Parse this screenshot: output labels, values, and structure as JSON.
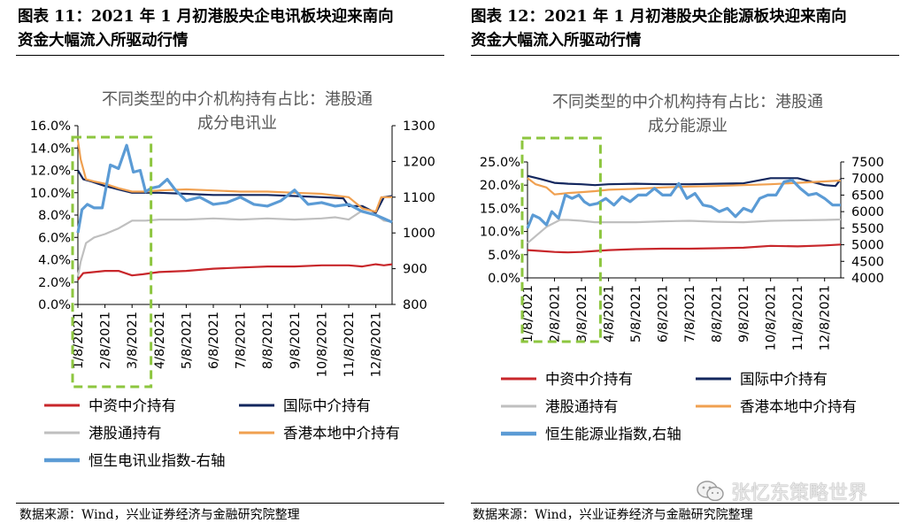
{
  "left": {
    "fig_title_1": "图表 11：2021 年 1 月初港股央企电讯板块迎来南向",
    "fig_title_2": "资金大幅流入所驱动行情",
    "source": "数据来源：Wind，兴业证券经济与金融研究院整理"
  },
  "right": {
    "fig_title_1": "图表 12：2021 年 1 月初港股央企能源板块迎来南向",
    "fig_title_2": "资金大幅流入所驱动行情",
    "source": "数据来源：Wind，兴业证券经济与金融研究院整理"
  },
  "watermark": {
    "text": "张忆东策略世界"
  },
  "colors": {
    "red": "#c8272b",
    "navy": "#13275e",
    "gray": "#bfbfbf",
    "orange": "#f0a050",
    "blue": "#5b9bd5",
    "highlight": "#8dc63f"
  },
  "chart_data": [
    {
      "type": "line",
      "title_lines": [
        "不同类型的中介机构持有占比：港股通",
        "成分电讯业"
      ],
      "x_ticks": [
        "1/8/2021",
        "2/8/2021",
        "3/8/2021",
        "4/8/2021",
        "5/8/2021",
        "6/8/2021",
        "7/8/2021",
        "8/8/2021",
        "9/8/2021",
        "10/8/2021",
        "11/8/2021",
        "12/8/2021"
      ],
      "x_range": [
        0,
        11.6
      ],
      "highlight_x": [
        0,
        2.7
      ],
      "y_left": {
        "ticks": [
          "0.0%",
          "2.0%",
          "4.0%",
          "6.0%",
          "8.0%",
          "10.0%",
          "12.0%",
          "14.0%",
          "16.0%"
        ],
        "range": [
          0,
          16
        ]
      },
      "y_right": {
        "ticks": [
          "800",
          "900",
          "1000",
          "1100",
          "1200",
          "1300"
        ],
        "range": [
          800,
          1300
        ]
      },
      "series": [
        {
          "name": "中资中介持有",
          "axis": "left",
          "color": "#c8272b",
          "x": [
            0,
            0.2,
            0.6,
            1.0,
            1.5,
            2.0,
            2.4,
            3.0,
            4.0,
            5.0,
            6.0,
            7.0,
            8.0,
            9.0,
            10.0,
            10.5,
            11.0,
            11.3,
            11.6
          ],
          "values": [
            2.2,
            2.8,
            2.9,
            3.0,
            3.0,
            2.6,
            2.7,
            2.9,
            3.0,
            3.2,
            3.3,
            3.4,
            3.4,
            3.5,
            3.5,
            3.4,
            3.6,
            3.5,
            3.6
          ]
        },
        {
          "name": "国际中介持有",
          "axis": "left",
          "color": "#13275e",
          "x": [
            0,
            0.2,
            0.5,
            1.0,
            1.5,
            2.0,
            2.5,
            3.0,
            4.0,
            5.0,
            6.0,
            7.0,
            8.0,
            9.0,
            9.8,
            10.0,
            10.5,
            11.0,
            11.3,
            11.6
          ],
          "values": [
            12.0,
            11.2,
            11.0,
            10.6,
            10.3,
            10.0,
            10.0,
            10.0,
            9.9,
            9.8,
            9.8,
            9.8,
            9.7,
            9.6,
            9.5,
            8.8,
            8.8,
            8.2,
            9.6,
            9.7
          ]
        },
        {
          "name": "港股通持有",
          "axis": "left",
          "color": "#bfbfbf",
          "x": [
            0,
            0.1,
            0.3,
            0.6,
            1.0,
            1.5,
            2.0,
            2.5,
            3.0,
            4.0,
            5.0,
            6.0,
            7.0,
            8.0,
            9.0,
            9.5,
            10.0,
            10.5,
            11.0,
            11.3,
            11.6
          ],
          "values": [
            2.5,
            3.8,
            5.5,
            6.0,
            6.3,
            6.8,
            7.5,
            7.5,
            7.6,
            7.6,
            7.7,
            7.6,
            7.7,
            7.6,
            7.7,
            7.8,
            7.6,
            8.4,
            8.0,
            7.5,
            7.4
          ]
        },
        {
          "name": "香港本地中介持有",
          "axis": "left",
          "color": "#f0a050",
          "x": [
            0,
            0.1,
            0.3,
            0.6,
            1.0,
            1.5,
            2.0,
            2.5,
            3.0,
            4.0,
            5.0,
            6.0,
            7.0,
            8.0,
            9.0,
            10.0,
            10.5,
            11.0,
            11.2,
            11.6
          ],
          "values": [
            14.7,
            13.0,
            11.2,
            11.0,
            10.8,
            10.4,
            10.1,
            10.1,
            10.2,
            10.3,
            10.2,
            10.1,
            10.1,
            10.0,
            9.9,
            9.6,
            8.6,
            8.3,
            9.6,
            9.6
          ]
        },
        {
          "name": "恒生电讯业指数-右轴",
          "axis": "right",
          "color": "#5b9bd5",
          "x": [
            0,
            0.15,
            0.35,
            0.6,
            0.9,
            1.2,
            1.5,
            1.8,
            2.05,
            2.3,
            2.5,
            2.7,
            3.0,
            3.3,
            3.6,
            4.0,
            4.5,
            5.0,
            5.5,
            6.0,
            6.5,
            7.0,
            7.5,
            8.0,
            8.5,
            9.0,
            9.5,
            10.0,
            10.5,
            11.0,
            11.3,
            11.6
          ],
          "values": [
            1000,
            1065,
            1080,
            1070,
            1070,
            1190,
            1180,
            1245,
            1170,
            1175,
            1115,
            1125,
            1130,
            1150,
            1120,
            1090,
            1100,
            1080,
            1085,
            1100,
            1080,
            1075,
            1090,
            1120,
            1080,
            1085,
            1075,
            1080,
            1060,
            1050,
            1040,
            1030
          ]
        }
      ],
      "legend": [
        "中资中介持有",
        "国际中介持有",
        "港股通持有",
        "香港本地中介持有",
        "恒生电讯业指数-右轴"
      ]
    },
    {
      "type": "line",
      "title_lines": [
        "不同类型的中介机构持有占比：港股通",
        "成分能源业"
      ],
      "x_ticks": [
        "1/8/2021",
        "2/8/2021",
        "3/8/2021",
        "4/8/2021",
        "5/8/2021",
        "6/8/2021",
        "7/8/2021",
        "8/8/2021",
        "9/8/2021",
        "10/8/2021",
        "11/8/2021",
        "12/8/2021"
      ],
      "x_range": [
        0,
        11.6
      ],
      "highlight_x": [
        0,
        2.7
      ],
      "y_left": {
        "ticks": [
          "0.0%",
          "5.0%",
          "10.0%",
          "15.0%",
          "20.0%",
          "25.0%"
        ],
        "range": [
          0,
          25
        ]
      },
      "y_right": {
        "ticks": [
          "4000",
          "4500",
          "5000",
          "5500",
          "6000",
          "6500",
          "7000",
          "7500"
        ],
        "range": [
          4000,
          7500
        ]
      },
      "series": [
        {
          "name": "中资中介持有",
          "axis": "left",
          "color": "#c8272b",
          "x": [
            0,
            0.5,
            1.0,
            1.5,
            2.0,
            2.5,
            3.0,
            4.0,
            5.0,
            6.0,
            7.0,
            8.0,
            9.0,
            10.0,
            11.0,
            11.6
          ],
          "values": [
            6.0,
            5.8,
            5.6,
            5.5,
            5.6,
            5.8,
            6.0,
            6.2,
            6.3,
            6.3,
            6.4,
            6.5,
            6.9,
            6.8,
            7.0,
            7.2
          ]
        },
        {
          "name": "国际中介持有",
          "axis": "left",
          "color": "#13275e",
          "x": [
            0,
            0.5,
            1.0,
            1.5,
            2.0,
            2.5,
            3.0,
            4.0,
            5.0,
            6.0,
            7.0,
            8.0,
            9.0,
            10.0,
            11.0,
            11.4,
            11.6
          ],
          "values": [
            22.0,
            21.3,
            20.5,
            20.3,
            20.2,
            20.0,
            20.2,
            20.3,
            20.2,
            20.2,
            20.3,
            20.4,
            21.5,
            21.5,
            20.0,
            19.8,
            21.3
          ]
        },
        {
          "name": "港股通持有",
          "axis": "left",
          "color": "#bfbfbf",
          "x": [
            0,
            0.3,
            0.7,
            1.2,
            1.5,
            2.0,
            2.5,
            3.0,
            4.0,
            5.0,
            6.0,
            7.0,
            8.0,
            9.0,
            10.0,
            11.0,
            11.6
          ],
          "values": [
            7.5,
            9.0,
            11.0,
            12.5,
            12.5,
            12.3,
            12.0,
            12.0,
            12.0,
            12.2,
            12.3,
            12.1,
            12.0,
            12.3,
            12.4,
            12.5,
            12.6
          ]
        },
        {
          "name": "香港本地中介持有",
          "axis": "left",
          "color": "#f0a050",
          "x": [
            0,
            0.3,
            0.7,
            1.0,
            1.5,
            2.0,
            2.5,
            3.0,
            4.0,
            5.0,
            6.0,
            7.0,
            8.0,
            9.0,
            10.0,
            11.0,
            11.6
          ],
          "values": [
            21.5,
            20.2,
            19.5,
            18.0,
            18.3,
            18.5,
            18.7,
            19.0,
            19.2,
            19.5,
            19.7,
            19.8,
            20.0,
            20.2,
            20.5,
            20.8,
            21.0
          ]
        },
        {
          "name": "恒生能源业指数,右轴",
          "axis": "right",
          "color": "#5b9bd5",
          "x": [
            0,
            0.2,
            0.45,
            0.7,
            0.9,
            1.15,
            1.4,
            1.65,
            1.9,
            2.1,
            2.3,
            2.6,
            2.9,
            3.2,
            3.5,
            3.8,
            4.1,
            4.4,
            4.7,
            5.0,
            5.3,
            5.6,
            5.9,
            6.2,
            6.5,
            6.8,
            7.1,
            7.4,
            7.7,
            8.0,
            8.3,
            8.6,
            8.9,
            9.2,
            9.5,
            9.8,
            10.1,
            10.4,
            10.7,
            11.0,
            11.3,
            11.6
          ],
          "values": [
            5500,
            5900,
            5800,
            5600,
            6000,
            5800,
            6500,
            6400,
            6500,
            6300,
            6200,
            6250,
            6400,
            6200,
            6450,
            6300,
            6500,
            6500,
            6700,
            6500,
            6500,
            6850,
            6400,
            6550,
            6200,
            6150,
            6000,
            6100,
            5850,
            6100,
            6000,
            6400,
            6500,
            6500,
            6900,
            6950,
            6700,
            6500,
            6550,
            6400,
            6200,
            6200
          ]
        }
      ],
      "legend": [
        "中资中介持有",
        "国际中介持有",
        "港股通持有",
        "香港本地中介持有",
        "恒生能源业指数,右轴"
      ]
    }
  ]
}
